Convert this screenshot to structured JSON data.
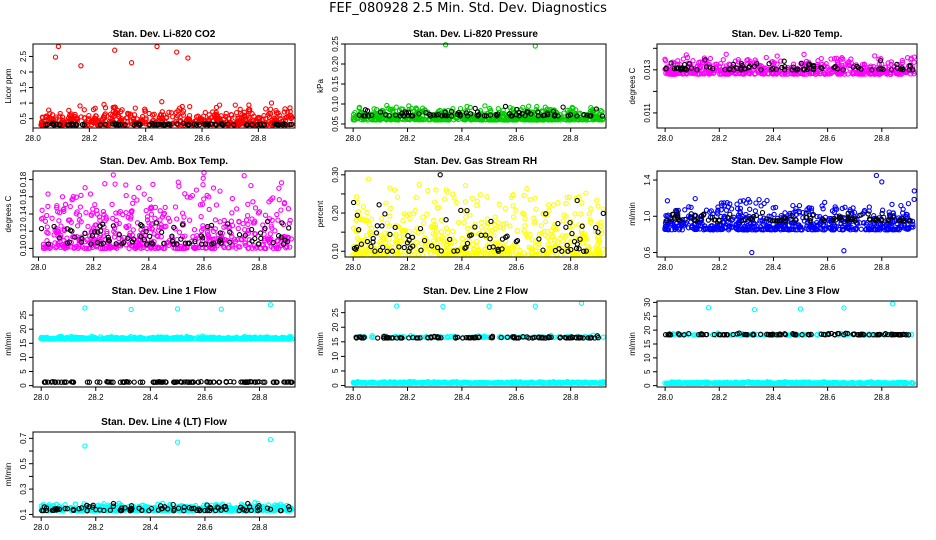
{
  "page_title": "FEF_080928  2.5 Min. Std. Dev. Diagnostics",
  "colors": {
    "red": "#ff0000",
    "green": "#00cc00",
    "magenta": "#ff00ff",
    "yellow": "#ffff00",
    "blue": "#0000ff",
    "cyan": "#00ffff",
    "black": "#000000"
  },
  "chart_data": [
    {
      "type": "scatter",
      "title": "Stan. Dev. Li-820 CO2",
      "ylabel": "Licor ppm",
      "xlim": [
        28.0,
        28.93
      ],
      "ylim": [
        0.2,
        2.9
      ],
      "xticks": [
        28.0,
        28.2,
        28.4,
        28.6,
        28.8
      ],
      "xtick_labels": [
        "28.0",
        "28.2",
        "28.4",
        "28.6",
        "28.8"
      ],
      "yticks": [
        0.5,
        1.0,
        1.5,
        2.0,
        2.5
      ],
      "ytick_labels": [
        "0.5",
        "1",
        "1.5",
        "2",
        "2.5"
      ],
      "series": [
        {
          "color": "red",
          "count": 520,
          "base": 0.3,
          "spread": 0.6,
          "outliers": [
            [
              28.09,
              2.82
            ],
            [
              28.29,
              2.7
            ],
            [
              28.44,
              2.82
            ],
            [
              28.51,
              2.64
            ],
            [
              28.55,
              2.45
            ],
            [
              28.08,
              2.48
            ],
            [
              28.17,
              2.2
            ],
            [
              28.35,
              2.3
            ]
          ]
        },
        {
          "color": "black",
          "count": 90,
          "base": 0.3,
          "spread": 0.05,
          "outliers": []
        }
      ]
    },
    {
      "type": "scatter",
      "title": "Stan. Dev. Li-820 Pressure",
      "ylabel": "kPa",
      "xlim": [
        27.97,
        28.93
      ],
      "ylim": [
        0.04,
        0.25
      ],
      "xticks": [
        28.0,
        28.2,
        28.4,
        28.6,
        28.8
      ],
      "xtick_labels": [
        "28.0",
        "28.2",
        "28.4",
        "28.6",
        "28.8"
      ],
      "yticks": [
        0.05,
        0.1,
        0.15,
        0.2,
        0.25
      ],
      "ytick_labels": [
        "0.05",
        "0.10",
        "0.15",
        "0.20",
        "0.25"
      ],
      "series": [
        {
          "color": "green",
          "count": 600,
          "base": 0.06,
          "spread": 0.03,
          "outliers": [
            [
              28.34,
              0.248
            ],
            [
              28.67,
              0.245
            ]
          ]
        },
        {
          "color": "black",
          "count": 90,
          "base": 0.07,
          "spread": 0.02,
          "outliers": []
        }
      ]
    },
    {
      "type": "scatter",
      "title": "Stan. Dev. Li-820 Temp.",
      "ylabel": "degrees C",
      "xlim": [
        27.97,
        28.93
      ],
      "ylim": [
        0.0103,
        0.0142
      ],
      "xticks": [
        28.0,
        28.2,
        28.4,
        28.6,
        28.8
      ],
      "xtick_labels": [
        "28.0",
        "28.2",
        "28.4",
        "28.6",
        "28.8"
      ],
      "yticks": [
        0.011,
        0.012,
        0.013,
        0.014
      ],
      "ytick_labels": [
        "0.011",
        "",
        "0.013",
        ""
      ],
      "series": [
        {
          "color": "magenta",
          "count": 520,
          "base": 0.0128,
          "spread": 0.0008,
          "outliers": []
        },
        {
          "color": "black",
          "count": 90,
          "base": 0.013,
          "spread": 0.0004,
          "outliers": []
        }
      ]
    },
    {
      "type": "scatter",
      "title": "Stan. Dev. Amb. Box Temp.",
      "ylabel": "degrees C",
      "xlim": [
        27.98,
        28.93
      ],
      "ylim": [
        0.09,
        0.19
      ],
      "xticks": [
        28.0,
        28.2,
        28.4,
        28.6,
        28.8
      ],
      "xtick_labels": [
        "28.0",
        "28.2",
        "28.4",
        "28.6",
        "28.8"
      ],
      "yticks": [
        0.1,
        0.12,
        0.14,
        0.16,
        0.18
      ],
      "ytick_labels": [
        "0.10",
        "0.12",
        "0.14",
        "0.16",
        "0.18"
      ],
      "series": [
        {
          "color": "magenta",
          "count": 560,
          "base": 0.1,
          "spread": 0.07,
          "outliers": [
            [
              28.6,
              0.188
            ]
          ]
        },
        {
          "color": "black",
          "count": 90,
          "base": 0.105,
          "spread": 0.025,
          "outliers": []
        }
      ]
    },
    {
      "type": "scatter",
      "title": "Stan. Dev. Gas Stream RH",
      "ylabel": "percent",
      "xlim": [
        27.97,
        28.93
      ],
      "ylim": [
        0.085,
        0.31
      ],
      "xticks": [
        28.0,
        28.2,
        28.4,
        28.6,
        28.8
      ],
      "xtick_labels": [
        "28.0",
        "28.2",
        "28.4",
        "28.6",
        "28.8"
      ],
      "yticks": [
        0.1,
        0.15,
        0.2,
        0.25,
        0.3
      ],
      "ytick_labels": [
        "0.10",
        "",
        "0.20",
        "",
        "0.30"
      ],
      "series": [
        {
          "color": "yellow",
          "count": 560,
          "base": 0.09,
          "spread": 0.16,
          "outliers": []
        },
        {
          "color": "black",
          "count": 90,
          "base": 0.1,
          "spread": 0.12,
          "outliers": [
            [
              28.32,
              0.3
            ]
          ]
        }
      ]
    },
    {
      "type": "scatter",
      "title": "Stan. Dev. Sample Flow",
      "ylabel": "ml/min",
      "xlim": [
        27.97,
        28.93
      ],
      "ylim": [
        0.55,
        1.5
      ],
      "xticks": [
        28.0,
        28.2,
        28.4,
        28.6,
        28.8
      ],
      "xtick_labels": [
        "28.0",
        "28.2",
        "28.4",
        "28.6",
        "28.8"
      ],
      "yticks": [
        0.6,
        1.0,
        1.4
      ],
      "ytick_labels": [
        "0.6",
        "1.0",
        "1.4"
      ],
      "series": [
        {
          "color": "blue",
          "count": 600,
          "base": 0.85,
          "spread": 0.3,
          "outliers": [
            [
              28.78,
              1.45
            ],
            [
              28.8,
              1.38
            ],
            [
              28.32,
              0.6
            ],
            [
              28.66,
              0.62
            ],
            [
              28.92,
              1.28
            ]
          ]
        },
        {
          "color": "black",
          "count": 90,
          "base": 0.95,
          "spread": 0.1,
          "outliers": []
        }
      ]
    },
    {
      "type": "scatter",
      "title": "Stan. Dev. Line 1 Flow",
      "ylabel": "ml/min",
      "xlim": [
        27.97,
        28.93
      ],
      "ylim": [
        -0.5,
        30
      ],
      "xticks": [
        28.0,
        28.2,
        28.4,
        28.6,
        28.8
      ],
      "xtick_labels": [
        "28.0",
        "28.2",
        "28.4",
        "28.6",
        "28.8"
      ],
      "yticks": [
        0,
        5,
        10,
        15,
        20,
        25
      ],
      "ytick_labels": [
        "0",
        "5",
        "10",
        "15",
        "20",
        "25"
      ],
      "series": [
        {
          "color": "cyan",
          "count": 500,
          "base": 16.5,
          "spread": 0.8,
          "outliers": [
            [
              28.16,
              27.5
            ],
            [
              28.33,
              27.0
            ],
            [
              28.5,
              27.2
            ],
            [
              28.66,
              27.1
            ],
            [
              28.84,
              28.7
            ]
          ]
        },
        {
          "color": "black",
          "count": 110,
          "base": 1.2,
          "spread": 0.2,
          "outliers": []
        }
      ]
    },
    {
      "type": "scatter",
      "title": "Stan. Dev. Line 2 Flow",
      "ylabel": "ml/min",
      "xlim": [
        27.97,
        28.93
      ],
      "ylim": [
        -0.5,
        29
      ],
      "xticks": [
        28.0,
        28.2,
        28.4,
        28.6,
        28.8
      ],
      "xtick_labels": [
        "28.0",
        "28.2",
        "28.4",
        "28.6",
        "28.8"
      ],
      "yticks": [
        0,
        5,
        10,
        15,
        20,
        25
      ],
      "ytick_labels": [
        "0",
        "5",
        "10",
        "15",
        "20",
        "25"
      ],
      "series": [
        {
          "color": "cyan",
          "count": 500,
          "base": 0.8,
          "spread": 0.5,
          "outliers": [
            [
              28.16,
              27.3
            ],
            [
              28.33,
              27.1
            ],
            [
              28.5,
              27.2
            ],
            [
              28.67,
              27.2
            ],
            [
              28.84,
              28.2
            ]
          ]
        },
        {
          "color": "cyan",
          "count": 110,
          "base": 16.5,
          "spread": 0.6,
          "outliers": []
        },
        {
          "color": "black",
          "count": 110,
          "base": 16.3,
          "spread": 0.6,
          "outliers": []
        }
      ]
    },
    {
      "type": "scatter",
      "title": "Stan. Dev. Line 3 Flow",
      "ylabel": "ml/min",
      "xlim": [
        27.97,
        28.93
      ],
      "ylim": [
        -0.5,
        30.5
      ],
      "xticks": [
        28.0,
        28.2,
        28.4,
        28.6,
        28.8
      ],
      "xtick_labels": [
        "28.0",
        "28.2",
        "28.4",
        "28.6",
        "28.8"
      ],
      "yticks": [
        0,
        5,
        10,
        15,
        20,
        25,
        30
      ],
      "ytick_labels": [
        "0",
        "5",
        "10",
        "15",
        "20",
        "25",
        "30"
      ],
      "series": [
        {
          "color": "cyan",
          "count": 500,
          "base": 0.8,
          "spread": 0.5,
          "outliers": [
            [
              28.16,
              28.1
            ],
            [
              28.33,
              27.4
            ],
            [
              28.5,
              27.6
            ],
            [
              28.66,
              28.0
            ],
            [
              28.84,
              29.5
            ]
          ]
        },
        {
          "color": "cyan",
          "count": 110,
          "base": 18.2,
          "spread": 0.6,
          "outliers": []
        },
        {
          "color": "black",
          "count": 110,
          "base": 18.3,
          "spread": 0.5,
          "outliers": []
        }
      ]
    },
    {
      "type": "scatter",
      "title": "Stan. Dev. Line 4 (LT) Flow",
      "ylabel": "ml/min",
      "xlim": [
        27.97,
        28.93
      ],
      "ylim": [
        0.08,
        0.75
      ],
      "xticks": [
        28.0,
        28.2,
        28.4,
        28.6,
        28.8
      ],
      "xtick_labels": [
        "28.0",
        "28.2",
        "28.4",
        "28.6",
        "28.8"
      ],
      "yticks": [
        0.1,
        0.2,
        0.3,
        0.4,
        0.5,
        0.6,
        0.7
      ],
      "ytick_labels": [
        "0.1",
        "",
        "0.3",
        "",
        "0.5",
        "",
        "0.7"
      ],
      "series": [
        {
          "color": "cyan",
          "count": 520,
          "base": 0.13,
          "spread": 0.05,
          "outliers": [
            [
              28.16,
              0.64
            ],
            [
              28.5,
              0.67
            ],
            [
              28.84,
              0.69
            ]
          ]
        },
        {
          "color": "black",
          "count": 100,
          "base": 0.13,
          "spread": 0.05,
          "outliers": []
        }
      ]
    }
  ]
}
